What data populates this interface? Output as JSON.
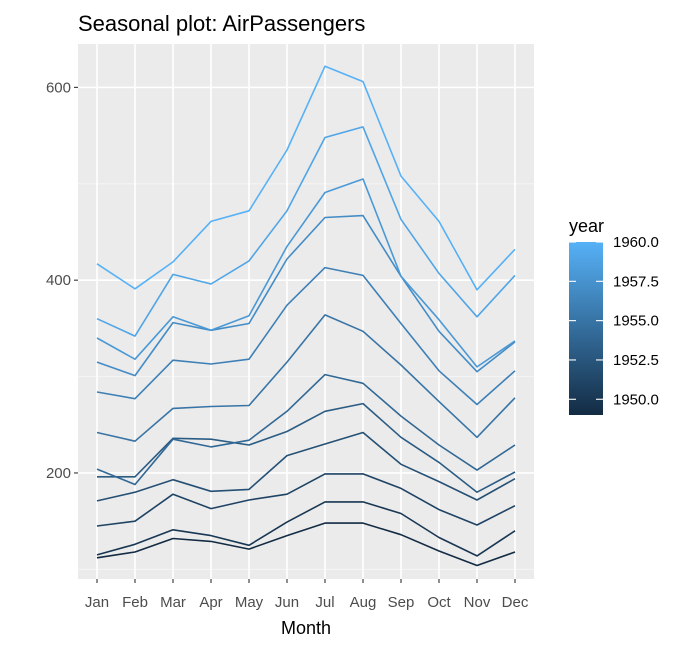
{
  "chart_data": {
    "type": "line",
    "title": "Seasonal plot: AirPassengers",
    "xlabel": "Month",
    "ylabel": "",
    "categories": [
      "Jan",
      "Feb",
      "Mar",
      "Apr",
      "May",
      "Jun",
      "Jul",
      "Aug",
      "Sep",
      "Oct",
      "Nov",
      "Dec"
    ],
    "y_ticks": [
      200,
      400,
      600
    ],
    "y_tick_labels": [
      "200",
      "400",
      "600"
    ],
    "ylim": [
      90,
      645
    ],
    "grid": true,
    "panel_background": "#EBEBEB",
    "legend": {
      "title": "year",
      "position": "right",
      "min": 1949,
      "max": 1960,
      "ticks": [
        1950.0,
        1952.5,
        1955.0,
        1957.5,
        1960.0
      ],
      "tick_labels": [
        "1950.0",
        "1952.5",
        "1955.0",
        "1957.5",
        "1960.0"
      ],
      "low_color": "#132B43",
      "high_color": "#56B1F7"
    },
    "series": [
      {
        "year": 1949,
        "values": [
          112,
          118,
          132,
          129,
          121,
          135,
          148,
          148,
          136,
          119,
          104,
          118
        ]
      },
      {
        "year": 1950,
        "values": [
          115,
          126,
          141,
          135,
          125,
          149,
          170,
          170,
          158,
          133,
          114,
          140
        ]
      },
      {
        "year": 1951,
        "values": [
          145,
          150,
          178,
          163,
          172,
          178,
          199,
          199,
          184,
          162,
          146,
          166
        ]
      },
      {
        "year": 1952,
        "values": [
          171,
          180,
          193,
          181,
          183,
          218,
          230,
          242,
          209,
          191,
          172,
          194
        ]
      },
      {
        "year": 1953,
        "values": [
          196,
          196,
          236,
          235,
          229,
          243,
          264,
          272,
          237,
          211,
          180,
          201
        ]
      },
      {
        "year": 1954,
        "values": [
          204,
          188,
          235,
          227,
          234,
          264,
          302,
          293,
          259,
          229,
          203,
          229
        ]
      },
      {
        "year": 1955,
        "values": [
          242,
          233,
          267,
          269,
          270,
          315,
          364,
          347,
          312,
          274,
          237,
          278
        ]
      },
      {
        "year": 1956,
        "values": [
          284,
          277,
          317,
          313,
          318,
          374,
          413,
          405,
          355,
          306,
          271,
          306
        ]
      },
      {
        "year": 1957,
        "values": [
          315,
          301,
          356,
          348,
          355,
          422,
          465,
          467,
          404,
          347,
          305,
          336
        ]
      },
      {
        "year": 1958,
        "values": [
          340,
          318,
          362,
          348,
          363,
          435,
          491,
          505,
          404,
          359,
          310,
          337
        ]
      },
      {
        "year": 1959,
        "values": [
          360,
          342,
          406,
          396,
          420,
          472,
          548,
          559,
          463,
          407,
          362,
          405
        ]
      },
      {
        "year": 1960,
        "values": [
          417,
          391,
          419,
          461,
          472,
          535,
          622,
          606,
          508,
          461,
          390,
          432
        ]
      }
    ]
  }
}
